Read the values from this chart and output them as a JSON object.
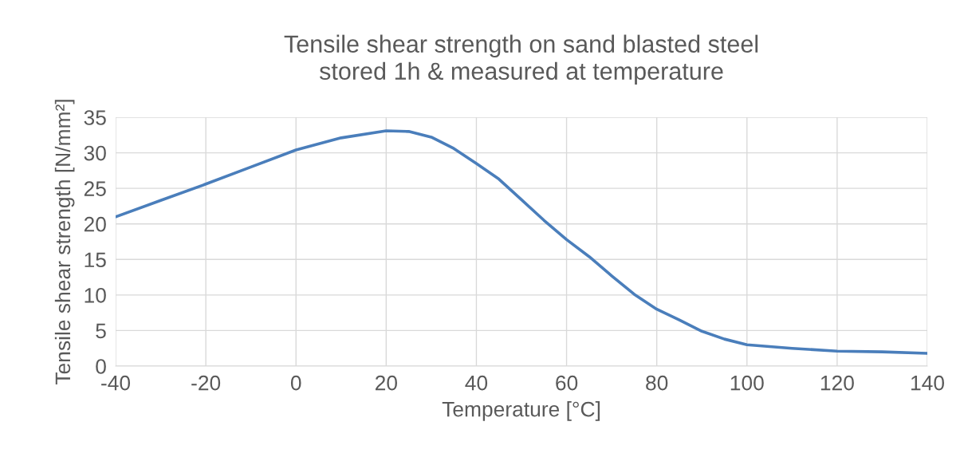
{
  "chart_data": {
    "type": "line",
    "title": "Tensile shear strength on sand blasted steel\nstored 1h & measured at temperature",
    "xlabel": "Temperature [°C]",
    "ylabel": "Tensile shear strength [N/mm²]",
    "x": [
      -40,
      -30,
      -20,
      -10,
      0,
      10,
      20,
      25,
      30,
      35,
      40,
      45,
      50,
      55,
      60,
      65,
      70,
      75,
      80,
      85,
      90,
      95,
      100,
      110,
      120,
      130,
      140
    ],
    "series": [
      {
        "color": "#4a7ebb",
        "values": [
          21.0,
          23.3,
          25.6,
          28.0,
          30.4,
          32.1,
          33.1,
          33.0,
          32.2,
          30.6,
          28.5,
          26.3,
          23.4,
          20.5,
          17.8,
          15.4,
          12.7,
          10.1,
          8.0,
          6.5,
          4.9,
          3.8,
          3.0,
          2.5,
          2.1,
          2.0,
          1.8
        ]
      }
    ],
    "xlim": [
      -40,
      140
    ],
    "xticks": [
      -40,
      -20,
      0,
      20,
      40,
      60,
      80,
      100,
      120,
      140
    ],
    "ylim": [
      0,
      35
    ],
    "yticks": [
      0,
      5,
      10,
      15,
      20,
      25,
      30,
      35
    ],
    "grid": true,
    "marker": "none",
    "line_style": "solid"
  }
}
